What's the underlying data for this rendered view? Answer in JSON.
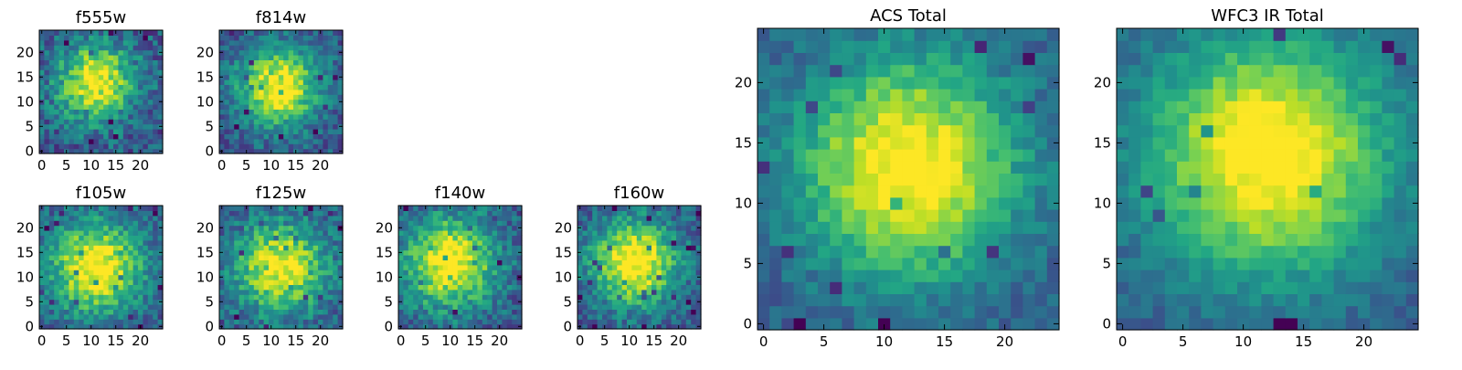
{
  "chart_data": [
    {
      "type": "heatmap",
      "title": "f555w",
      "grid": false,
      "colormap": "viridis",
      "xticks": [
        "0",
        "5",
        "10",
        "15",
        "20"
      ],
      "yticks": [
        "0",
        "5",
        "10",
        "15",
        "20"
      ],
      "xlim": [
        0,
        25
      ],
      "ylim": [
        0,
        25
      ],
      "size": 25,
      "center": [
        11,
        14
      ],
      "peak": 0.72,
      "spread": 5.5,
      "noise": 0.38,
      "seed": 11
    },
    {
      "type": "heatmap",
      "title": "f814w",
      "grid": false,
      "colormap": "viridis",
      "xticks": [
        "0",
        "5",
        "10",
        "15",
        "20"
      ],
      "yticks": [
        "0",
        "5",
        "10",
        "15",
        "20"
      ],
      "xlim": [
        0,
        25
      ],
      "ylim": [
        0,
        25
      ],
      "size": 25,
      "center": [
        11.5,
        13
      ],
      "peak": 0.78,
      "spread": 5.5,
      "noise": 0.32,
      "seed": 23
    },
    {
      "type": "heatmap",
      "title": "f105w",
      "grid": false,
      "colormap": "viridis",
      "xticks": [
        "0",
        "5",
        "10",
        "15",
        "20"
      ],
      "yticks": [
        "0",
        "5",
        "10",
        "15",
        "20"
      ],
      "xlim": [
        0,
        25
      ],
      "ylim": [
        0,
        25
      ],
      "size": 25,
      "center": [
        11,
        12
      ],
      "peak": 0.78,
      "spread": 6.5,
      "noise": 0.32,
      "seed": 37
    },
    {
      "type": "heatmap",
      "title": "f125w",
      "grid": false,
      "colormap": "viridis",
      "xticks": [
        "0",
        "5",
        "10",
        "15",
        "20"
      ],
      "yticks": [
        "0",
        "5",
        "10",
        "15",
        "20"
      ],
      "xlim": [
        0,
        25
      ],
      "ylim": [
        0,
        25
      ],
      "size": 25,
      "center": [
        12,
        12
      ],
      "peak": 0.72,
      "spread": 6.5,
      "noise": 0.34,
      "seed": 41
    },
    {
      "type": "heatmap",
      "title": "f140w",
      "grid": false,
      "colormap": "viridis",
      "xticks": [
        "0",
        "5",
        "10",
        "15",
        "20"
      ],
      "yticks": [
        "0",
        "5",
        "10",
        "15",
        "20"
      ],
      "xlim": [
        0,
        25
      ],
      "ylim": [
        0,
        25
      ],
      "size": 25,
      "center": [
        10,
        13
      ],
      "peak": 0.76,
      "spread": 6.5,
      "noise": 0.34,
      "seed": 53
    },
    {
      "type": "heatmap",
      "title": "f160w",
      "grid": false,
      "colormap": "viridis",
      "xticks": [
        "0",
        "5",
        "10",
        "15",
        "20"
      ],
      "yticks": [
        "0",
        "5",
        "10",
        "15",
        "20"
      ],
      "xlim": [
        0,
        25
      ],
      "ylim": [
        0,
        25
      ],
      "size": 25,
      "center": [
        11,
        13
      ],
      "peak": 0.8,
      "spread": 6,
      "noise": 0.32,
      "seed": 67
    },
    {
      "type": "heatmap",
      "title": "ACS Total",
      "grid": false,
      "colormap": "viridis",
      "xticks": [
        "0",
        "5",
        "10",
        "15",
        "20"
      ],
      "yticks": [
        "0",
        "5",
        "10",
        "15",
        "20"
      ],
      "xlim": [
        0,
        25
      ],
      "ylim": [
        0,
        25
      ],
      "size": 25,
      "center": [
        12,
        13
      ],
      "peak": 0.78,
      "spread": 6.5,
      "noise": 0.2,
      "seed": 79
    },
    {
      "type": "heatmap",
      "title": "WFC3 IR Total",
      "grid": false,
      "colormap": "viridis",
      "xticks": [
        "0",
        "5",
        "10",
        "15",
        "20"
      ],
      "yticks": [
        "0",
        "5",
        "10",
        "15",
        "20"
      ],
      "xlim": [
        0,
        25
      ],
      "ylim": [
        0,
        25
      ],
      "size": 25,
      "center": [
        12,
        14
      ],
      "peak": 0.8,
      "spread": 7,
      "noise": 0.16,
      "seed": 97
    }
  ]
}
